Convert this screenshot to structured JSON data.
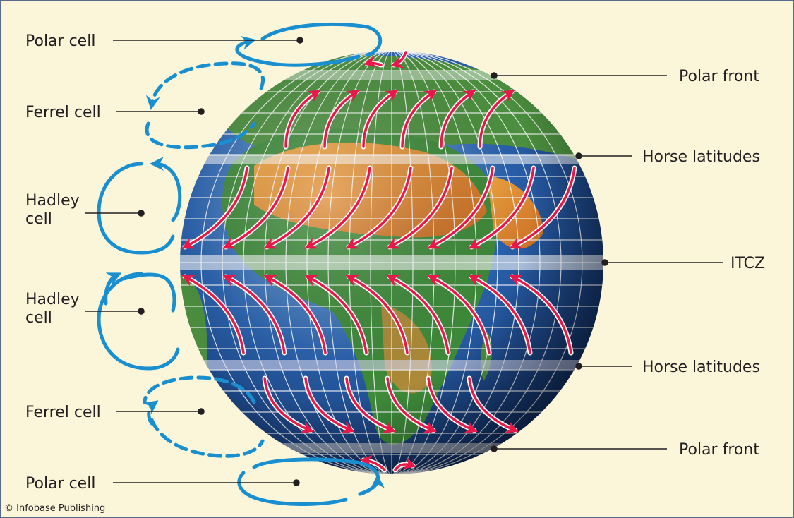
{
  "credit": "© Infobase Publishing",
  "labels": {
    "polar_cell_top": "Polar cell",
    "ferrel_cell_top": "Ferrel cell",
    "hadley_cell_top_1": "Hadley",
    "hadley_cell_top_2": "cell",
    "hadley_cell_bottom_1": "Hadley",
    "hadley_cell_bottom_2": "cell",
    "ferrel_cell_bottom": "Ferrel cell",
    "polar_cell_bottom": "Polar cell",
    "polar_front_top": "Polar front",
    "horse_latitudes_top": "Horse latitudes",
    "itcz": "ITCZ",
    "horse_latitudes_bottom": "Horse latitudes",
    "polar_front_bottom": "Polar front"
  },
  "colors": {
    "background": "#fbf6d9",
    "border": "#5a6a8a",
    "cell_arrow": "#1a8fd0",
    "wind_arrow": "#e8194a",
    "ocean": "#1f4f9a",
    "land_green": "#3e8a3a",
    "land_desert": "#e08a2a",
    "grid": "#ffffff"
  }
}
